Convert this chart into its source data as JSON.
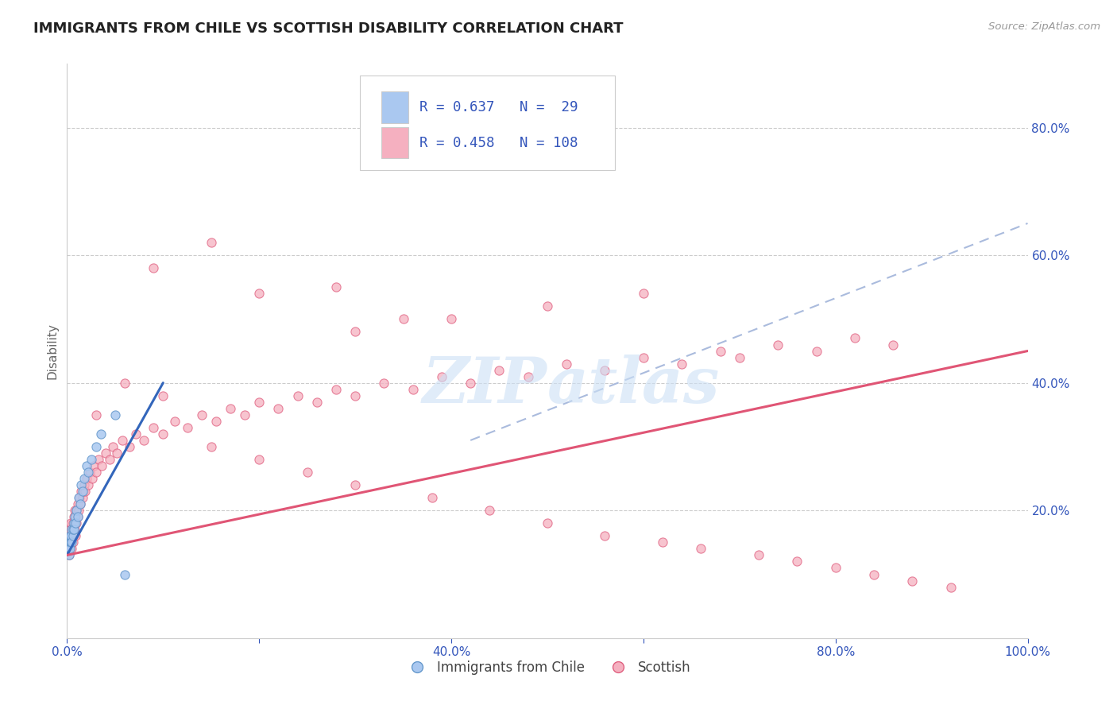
{
  "title": "IMMIGRANTS FROM CHILE VS SCOTTISH DISABILITY CORRELATION CHART",
  "source_text": "Source: ZipAtlas.com",
  "ylabel": "Disability",
  "xlim": [
    0.0,
    1.0
  ],
  "ylim": [
    0.0,
    0.9
  ],
  "xtick_positions": [
    0.0,
    0.2,
    0.4,
    0.6,
    0.8,
    1.0
  ],
  "xtick_labels": [
    "0.0%",
    "",
    "40.0%",
    "",
    "80.0%",
    "100.0%"
  ],
  "ytick_positions": [
    0.2,
    0.4,
    0.6,
    0.8
  ],
  "ytick_labels": [
    "20.0%",
    "40.0%",
    "60.0%",
    "80.0%"
  ],
  "color_chile_fill": "#aac8f0",
  "color_chile_edge": "#6699cc",
  "color_scottish_fill": "#f5b0c0",
  "color_scottish_edge": "#e06080",
  "color_line_chile": "#3366bb",
  "color_line_scottish": "#e05575",
  "color_trend_dashed": "#aabbdd",
  "blue_text_color": "#3355bb",
  "title_color": "#222222",
  "source_color": "#999999",
  "watermark_color": "#cce0f5",
  "legend_box_edge": "#cccccc",
  "chile_line_x0": 0.0,
  "chile_line_y0": 0.13,
  "chile_line_x1": 0.1,
  "chile_line_y1": 0.4,
  "scottish_line_x0": 0.0,
  "scottish_line_y0": 0.13,
  "scottish_line_x1": 1.0,
  "scottish_line_y1": 0.45,
  "dashed_line_x0": 0.42,
  "dashed_line_y0": 0.31,
  "dashed_line_x1": 1.0,
  "dashed_line_y1": 0.65,
  "chile_pts_x": [
    0.001,
    0.002,
    0.002,
    0.003,
    0.003,
    0.004,
    0.004,
    0.005,
    0.005,
    0.006,
    0.006,
    0.007,
    0.007,
    0.008,
    0.009,
    0.01,
    0.011,
    0.012,
    0.014,
    0.015,
    0.016,
    0.018,
    0.02,
    0.022,
    0.025,
    0.03,
    0.035,
    0.05,
    0.06
  ],
  "chile_pts_y": [
    0.14,
    0.13,
    0.15,
    0.14,
    0.16,
    0.15,
    0.16,
    0.15,
    0.17,
    0.16,
    0.17,
    0.18,
    0.17,
    0.19,
    0.18,
    0.2,
    0.19,
    0.22,
    0.21,
    0.24,
    0.23,
    0.25,
    0.27,
    0.26,
    0.28,
    0.3,
    0.32,
    0.35,
    0.1
  ],
  "scottish_pts_x": [
    0.001,
    0.001,
    0.002,
    0.002,
    0.002,
    0.003,
    0.003,
    0.003,
    0.004,
    0.004,
    0.004,
    0.005,
    0.005,
    0.005,
    0.006,
    0.006,
    0.007,
    0.007,
    0.008,
    0.008,
    0.009,
    0.009,
    0.01,
    0.01,
    0.011,
    0.011,
    0.012,
    0.013,
    0.014,
    0.015,
    0.016,
    0.017,
    0.018,
    0.019,
    0.02,
    0.022,
    0.024,
    0.026,
    0.028,
    0.03,
    0.033,
    0.036,
    0.04,
    0.044,
    0.048,
    0.052,
    0.058,
    0.065,
    0.072,
    0.08,
    0.09,
    0.1,
    0.112,
    0.125,
    0.14,
    0.155,
    0.17,
    0.185,
    0.2,
    0.22,
    0.24,
    0.26,
    0.28,
    0.3,
    0.33,
    0.36,
    0.39,
    0.42,
    0.45,
    0.48,
    0.52,
    0.56,
    0.6,
    0.64,
    0.68,
    0.7,
    0.74,
    0.78,
    0.82,
    0.86,
    0.09,
    0.15,
    0.2,
    0.28,
    0.35,
    0.03,
    0.06,
    0.1,
    0.15,
    0.2,
    0.25,
    0.3,
    0.38,
    0.44,
    0.5,
    0.56,
    0.62,
    0.66,
    0.72,
    0.76,
    0.8,
    0.84,
    0.88,
    0.92,
    0.3,
    0.4,
    0.5,
    0.6
  ],
  "scottish_pts_y": [
    0.14,
    0.15,
    0.13,
    0.15,
    0.16,
    0.14,
    0.16,
    0.17,
    0.15,
    0.16,
    0.18,
    0.14,
    0.16,
    0.17,
    0.15,
    0.18,
    0.16,
    0.19,
    0.17,
    0.2,
    0.16,
    0.19,
    0.18,
    0.2,
    0.19,
    0.21,
    0.2,
    0.22,
    0.21,
    0.23,
    0.22,
    0.23,
    0.24,
    0.23,
    0.25,
    0.24,
    0.26,
    0.25,
    0.27,
    0.26,
    0.28,
    0.27,
    0.29,
    0.28,
    0.3,
    0.29,
    0.31,
    0.3,
    0.32,
    0.31,
    0.33,
    0.32,
    0.34,
    0.33,
    0.35,
    0.34,
    0.36,
    0.35,
    0.37,
    0.36,
    0.38,
    0.37,
    0.39,
    0.38,
    0.4,
    0.39,
    0.41,
    0.4,
    0.42,
    0.41,
    0.43,
    0.42,
    0.44,
    0.43,
    0.45,
    0.44,
    0.46,
    0.45,
    0.47,
    0.46,
    0.58,
    0.62,
    0.54,
    0.55,
    0.5,
    0.35,
    0.4,
    0.38,
    0.3,
    0.28,
    0.26,
    0.24,
    0.22,
    0.2,
    0.18,
    0.16,
    0.15,
    0.14,
    0.13,
    0.12,
    0.11,
    0.1,
    0.09,
    0.08,
    0.48,
    0.5,
    0.52,
    0.54
  ]
}
